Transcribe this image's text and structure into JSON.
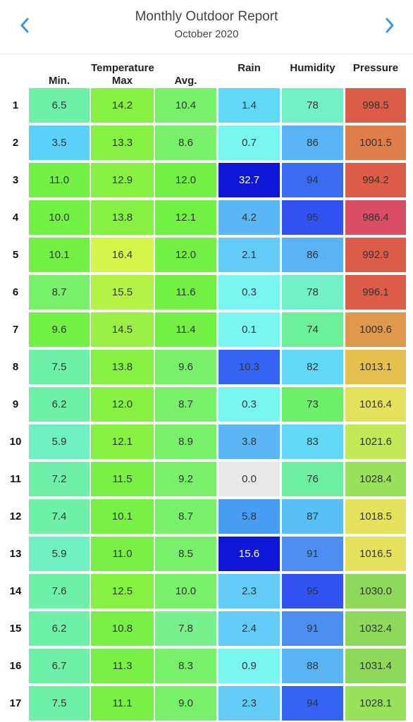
{
  "header": {
    "title": "Monthly Outdoor Report",
    "subtitle": "October 2020",
    "prev_icon": "chevron-left-icon",
    "next_icon": "chevron-right-icon",
    "accent": "#3a9ad9"
  },
  "columns": {
    "group_label": "Temperature",
    "min": "Min.",
    "max": "Max",
    "avg": "Avg.",
    "rain": "Rain",
    "humidity": "Humidity",
    "pressure": "Pressure"
  },
  "rows": [
    {
      "day": "1",
      "min": "6.5",
      "max": "14.2",
      "avg": "10.4",
      "rain": "1.4",
      "humidity": "78",
      "pressure": "998.5"
    },
    {
      "day": "2",
      "min": "3.5",
      "max": "13.3",
      "avg": "8.6",
      "rain": "0.7",
      "humidity": "86",
      "pressure": "1001.5"
    },
    {
      "day": "3",
      "min": "11.0",
      "max": "12.9",
      "avg": "12.0",
      "rain": "32.7",
      "humidity": "94",
      "pressure": "994.2"
    },
    {
      "day": "4",
      "min": "10.0",
      "max": "13.8",
      "avg": "12.1",
      "rain": "4.2",
      "humidity": "95",
      "pressure": "986.4"
    },
    {
      "day": "5",
      "min": "10.1",
      "max": "16.4",
      "avg": "12.0",
      "rain": "2.1",
      "humidity": "86",
      "pressure": "992.9"
    },
    {
      "day": "6",
      "min": "8.7",
      "max": "15.5",
      "avg": "11.6",
      "rain": "0.3",
      "humidity": "78",
      "pressure": "996.1"
    },
    {
      "day": "7",
      "min": "9.6",
      "max": "14.5",
      "avg": "11.4",
      "rain": "0.1",
      "humidity": "74",
      "pressure": "1009.6"
    },
    {
      "day": "8",
      "min": "7.5",
      "max": "13.8",
      "avg": "9.6",
      "rain": "10.3",
      "humidity": "82",
      "pressure": "1013.1"
    },
    {
      "day": "9",
      "min": "6.2",
      "max": "12.0",
      "avg": "8.7",
      "rain": "0.3",
      "humidity": "73",
      "pressure": "1016.4"
    },
    {
      "day": "10",
      "min": "5.9",
      "max": "12.1",
      "avg": "8.9",
      "rain": "3.8",
      "humidity": "83",
      "pressure": "1021.6"
    },
    {
      "day": "11",
      "min": "7.2",
      "max": "11.5",
      "avg": "9.2",
      "rain": "0.0",
      "humidity": "76",
      "pressure": "1028.4"
    },
    {
      "day": "12",
      "min": "7.4",
      "max": "10.1",
      "avg": "8.7",
      "rain": "5.8",
      "humidity": "87",
      "pressure": "1018.5"
    },
    {
      "day": "13",
      "min": "5.9",
      "max": "11.0",
      "avg": "8.5",
      "rain": "15.6",
      "humidity": "91",
      "pressure": "1016.5"
    },
    {
      "day": "14",
      "min": "7.6",
      "max": "12.5",
      "avg": "10.0",
      "rain": "2.3",
      "humidity": "95",
      "pressure": "1030.0"
    },
    {
      "day": "15",
      "min": "6.2",
      "max": "10.8",
      "avg": "7.8",
      "rain": "2.4",
      "humidity": "91",
      "pressure": "1032.4"
    },
    {
      "day": "16",
      "min": "6.7",
      "max": "11.3",
      "avg": "8.3",
      "rain": "0.9",
      "humidity": "88",
      "pressure": "1031.4"
    },
    {
      "day": "17",
      "min": "7.5",
      "max": "11.1",
      "avg": "9.0",
      "rain": "2.3",
      "humidity": "94",
      "pressure": "1028.1"
    }
  ],
  "colors": [
    {
      "min": "#6ef0a8",
      "max": "#86f043",
      "avg": "#78f06a",
      "rain": "#62d8f7",
      "humidity": "#72f0c8",
      "pressure": "#dc5c48"
    },
    {
      "min": "#5ad2f7",
      "max": "#86f043",
      "avg": "#78f06a",
      "rain": "#78f6ef",
      "humidity": "#58b4f5",
      "pressure": "#df7e4a"
    },
    {
      "min": "#72f043",
      "max": "#86f043",
      "avg": "#72f043",
      "rain": "#1016d6",
      "humidity": "#3a6cf2",
      "pressure": "#dc5c48"
    },
    {
      "min": "#72f043",
      "max": "#86f043",
      "avg": "#72f043",
      "rain": "#5ab6f4",
      "humidity": "#3252f2",
      "pressure": "#d94e64"
    },
    {
      "min": "#72f043",
      "max": "#d6f54a",
      "avg": "#72f043",
      "rain": "#62ccf6",
      "humidity": "#58b4f5",
      "pressure": "#dc5c48"
    },
    {
      "min": "#78f06a",
      "max": "#b4f245",
      "avg": "#72f043",
      "rain": "#78f6ef",
      "humidity": "#72f0c8",
      "pressure": "#dc5c48"
    },
    {
      "min": "#72f043",
      "max": "#9af045",
      "avg": "#72f043",
      "rain": "#78f6ef",
      "humidity": "#6cf09a",
      "pressure": "#e0984a"
    },
    {
      "min": "#6ef0a8",
      "max": "#86f043",
      "avg": "#78f06a",
      "rain": "#3664f2",
      "humidity": "#62d8f7",
      "pressure": "#e6c04e"
    },
    {
      "min": "#6ef0a8",
      "max": "#86f043",
      "avg": "#78f06a",
      "rain": "#78f6ef",
      "humidity": "#6cf06a",
      "pressure": "#e4e25c"
    },
    {
      "min": "#6ef0c0",
      "max": "#86f043",
      "avg": "#78f06a",
      "rain": "#5ab6f4",
      "humidity": "#62d8f7",
      "pressure": "#c2ea56"
    },
    {
      "min": "#6ef0a8",
      "max": "#78f045",
      "avg": "#78f06a",
      "rain": "#e8e8e8",
      "humidity": "#6cf0a0",
      "pressure": "#98e25a"
    },
    {
      "min": "#6ef0a8",
      "max": "#78f045",
      "avg": "#78f06a",
      "rain": "#489cf2",
      "humidity": "#58c0f5",
      "pressure": "#e4e25c"
    },
    {
      "min": "#6ef0c0",
      "max": "#78f045",
      "avg": "#78f06a",
      "rain": "#1016d6",
      "humidity": "#4c8ef2",
      "pressure": "#e4e25c"
    },
    {
      "min": "#6ef0a8",
      "max": "#86f043",
      "avg": "#78f06a",
      "rain": "#62ccf6",
      "humidity": "#3252f2",
      "pressure": "#8ed85a"
    },
    {
      "min": "#6ef0a8",
      "max": "#78f045",
      "avg": "#78f08c",
      "rain": "#62ccf6",
      "humidity": "#4c8ef2",
      "pressure": "#8ed85a"
    },
    {
      "min": "#6ef0a8",
      "max": "#78f045",
      "avg": "#78f06a",
      "rain": "#78f6ef",
      "humidity": "#58b4f5",
      "pressure": "#8ed85a"
    },
    {
      "min": "#6ef0a8",
      "max": "#78f045",
      "avg": "#78f06a",
      "rain": "#62ccf6",
      "humidity": "#3664f2",
      "pressure": "#98e25a"
    }
  ]
}
